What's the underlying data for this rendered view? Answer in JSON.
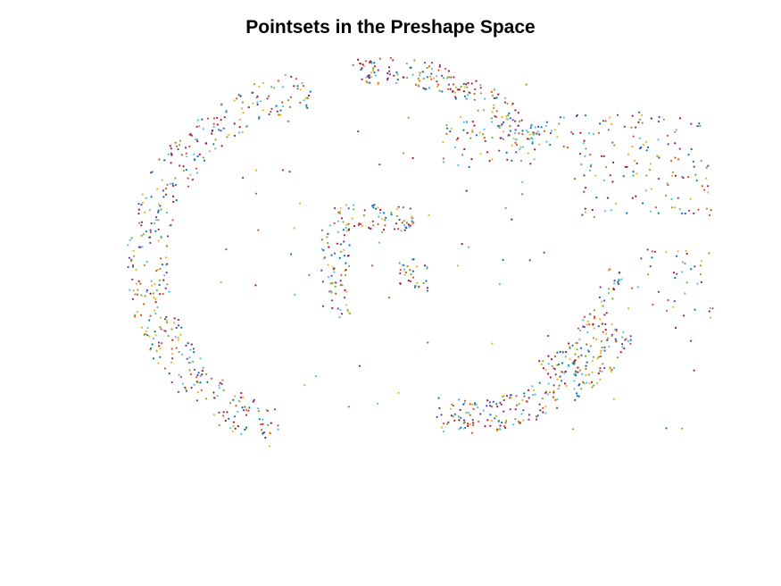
{
  "figure": {
    "title": "Pointsets in the Preshape Space"
  },
  "chart_data": {
    "type": "scatter",
    "title": "Pointsets in the Preshape Space",
    "xlabel": "",
    "ylabel": "",
    "axes_visible": false,
    "grid": false,
    "legend": "none",
    "xlim": [
      -1.0,
      1.0
    ],
    "ylim": [
      -0.8,
      0.8
    ],
    "marker": "dot",
    "colors": [
      "#0072BD",
      "#D95319",
      "#EDB120",
      "#7E2F8E",
      "#77AC30",
      "#4DBEEE",
      "#A2142F"
    ],
    "regions": [
      {
        "shape": "arc",
        "cx": -0.35,
        "cy": 0.05,
        "r": 0.62,
        "band": 0.14,
        "a0": 95,
        "a1": 255,
        "n": 430
      },
      {
        "shape": "arc",
        "cx": -0.15,
        "cy": 0.12,
        "r": 0.62,
        "band": 0.1,
        "a0": 35,
        "a1": 100,
        "n": 210
      },
      {
        "shape": "arc",
        "cx": 0.13,
        "cy": 0.12,
        "r": 0.62,
        "band": 0.12,
        "a0": 260,
        "a1": 330,
        "n": 250
      },
      {
        "shape": "arc",
        "cx": 0.13,
        "cy": 0.12,
        "r": 0.52,
        "band": 0.07,
        "a0": 300,
        "a1": 350,
        "n": 80
      },
      {
        "shape": "box",
        "x": [
          0.05,
          0.95
        ],
        "y": [
          0.4,
          0.58
        ],
        "n": 150
      },
      {
        "shape": "box",
        "x": [
          0.5,
          0.98
        ],
        "y": [
          0.22,
          0.4
        ],
        "n": 70
      },
      {
        "shape": "box",
        "x": [
          -0.33,
          -0.05
        ],
        "y": [
          0.16,
          0.26
        ],
        "n": 70
      },
      {
        "shape": "box",
        "x": [
          -0.37,
          -0.27
        ],
        "y": [
          -0.15,
          0.2
        ],
        "n": 70
      },
      {
        "shape": "box",
        "x": [
          -0.1,
          0.0
        ],
        "y": [
          -0.05,
          0.05
        ],
        "n": 30
      },
      {
        "shape": "box",
        "x": [
          0.7,
          0.98
        ],
        "y": [
          -0.15,
          0.1
        ],
        "n": 40
      },
      {
        "shape": "box",
        "x": [
          -0.75,
          0.95
        ],
        "y": [
          -0.55,
          0.7
        ],
        "n": 80
      }
    ]
  }
}
